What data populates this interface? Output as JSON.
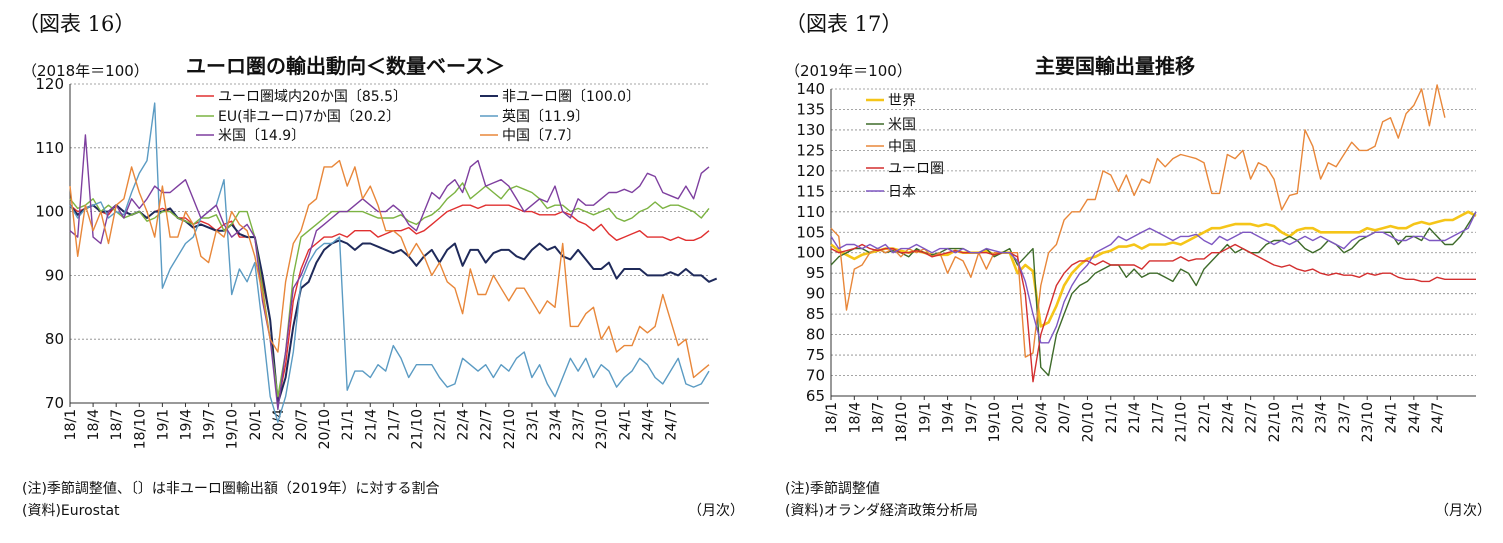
{
  "charts": [
    {
      "fig_label": "（図表 16）",
      "unit": "（2018年＝100）",
      "title": "ユーロ圏の輸出動向＜数量ベース＞",
      "note1": "(注)季節調整値、〔〕は非ユーロ圏輸出額（2019年）に対する割合",
      "note2": "(資料)Eurostat",
      "period": "（月次）"
    },
    {
      "fig_label": "（図表 17）",
      "unit": "（2019年＝100）",
      "title": "主要国輸出量推移",
      "note1": "(注)季節調整値",
      "note2": "(資料)オランダ経済政策分析局",
      "period": "（月次）"
    }
  ],
  "chart_data": [
    {
      "type": "line",
      "title": "ユーロ圏の輸出動向＜数量ベース＞",
      "ylim": [
        70,
        120
      ],
      "yticks": [
        70,
        80,
        90,
        100,
        110,
        120
      ],
      "x_tick_labels": [
        "18/1",
        "18/4",
        "18/7",
        "18/10",
        "19/1",
        "19/4",
        "19/7",
        "19/10",
        "20/1",
        "20/4",
        "20/7",
        "20/10",
        "21/1",
        "21/4",
        "21/7",
        "21/10",
        "22/1",
        "22/4",
        "22/7",
        "22/10",
        "23/1",
        "23/4",
        "23/7",
        "23/10",
        "24/1",
        "24/4",
        "24/7"
      ],
      "grid": true,
      "legend": "top",
      "series": [
        {
          "name": "ユーロ圏域内20か国〔85.5〕",
          "color": "#e03030",
          "width": 1.4,
          "values": [
            101,
            100,
            100.5,
            101,
            100,
            99.5,
            101,
            100,
            99.5,
            100,
            99,
            100,
            100.5,
            100,
            99,
            99,
            98,
            98.5,
            98,
            97,
            98,
            98.5,
            96,
            96,
            96,
            89,
            83,
            70,
            76,
            86,
            91,
            94,
            95,
            96,
            96,
            96.5,
            96,
            97,
            97,
            97,
            96,
            96.5,
            97,
            97,
            97.5,
            96.5,
            97,
            98,
            99,
            100,
            100.5,
            101,
            101,
            100.5,
            101,
            101,
            101,
            101,
            100.5,
            100,
            100,
            99.5,
            99.5,
            99.5,
            100,
            99.5,
            98.5,
            98,
            97,
            98,
            96.5,
            95.5,
            96,
            96.5,
            97,
            96,
            96,
            96,
            95.5,
            96,
            95.5,
            95.5,
            96,
            97
          ]
        },
        {
          "name": "非ユーロ圏〔100.0〕",
          "color": "#1f2a5a",
          "width": 2.0,
          "values": [
            101,
            99.5,
            100.5,
            101,
            100,
            100,
            101,
            100,
            99.5,
            100,
            99,
            100,
            100,
            100.5,
            99,
            98.5,
            97.5,
            98,
            97.5,
            97,
            97,
            98,
            96.5,
            96,
            96,
            90,
            83,
            70,
            74,
            82,
            88,
            89,
            92,
            94,
            95,
            95.5,
            95,
            94,
            95,
            95,
            94.5,
            94,
            93.5,
            94,
            93,
            91.5,
            93,
            94,
            92,
            94,
            95,
            91.5,
            94,
            94,
            92,
            93.5,
            94,
            94,
            93,
            92.5,
            94,
            95,
            94,
            94.5,
            93,
            92.5,
            94,
            92.5,
            91,
            91,
            92,
            89.5,
            91,
            91,
            91,
            90,
            90,
            90,
            90.5,
            90,
            91,
            90,
            90,
            89,
            89.5
          ]
        },
        {
          "name": "EU(非ユーロ)7か国〔20.2〕",
          "color": "#7cb342",
          "width": 1.4,
          "values": [
            102,
            100.5,
            101,
            102,
            100,
            101,
            100,
            99,
            99.5,
            100,
            98.5,
            99,
            100,
            100,
            99,
            98.5,
            98,
            99,
            99,
            99.5,
            97,
            98,
            100,
            100,
            96,
            88,
            80,
            71,
            78,
            90,
            96,
            97,
            98,
            99,
            100,
            100,
            100,
            100,
            100,
            99.5,
            99,
            99,
            99,
            99.5,
            98.5,
            98,
            99,
            99.5,
            100.5,
            102,
            103,
            104.5,
            102,
            103,
            104,
            103,
            102,
            103.5,
            104,
            103.5,
            103,
            102,
            100.5,
            101,
            101,
            100,
            100.5,
            100,
            99.5,
            100,
            100.5,
            99,
            98.5,
            99,
            100,
            100.5,
            101.5,
            100.5,
            101,
            101,
            100.5,
            100,
            99,
            100.5
          ]
        },
        {
          "name": "英国〔11.9〕",
          "color": "#5b9bc3",
          "width": 1.4,
          "values": [
            101,
            99,
            100.5,
            101,
            101.5,
            99,
            100,
            99.5,
            103,
            106,
            108,
            117,
            88,
            91,
            93,
            95,
            96,
            99,
            100,
            101,
            105,
            87,
            91,
            89,
            92,
            82,
            71,
            62,
            71,
            78,
            89,
            92,
            94,
            95,
            95,
            96,
            72,
            75,
            75,
            74,
            76,
            75,
            79,
            77,
            74,
            76,
            76,
            76,
            74,
            72.5,
            73,
            77,
            76,
            75,
            76,
            74,
            76,
            75,
            77,
            78,
            74,
            76,
            73,
            71,
            74,
            77,
            75,
            77,
            74,
            76,
            75,
            72.5,
            74,
            75,
            77,
            76,
            74,
            73,
            75,
            77,
            73,
            72.5,
            73,
            75
          ]
        },
        {
          "name": "米国〔14.9〕",
          "color": "#7e3f9f",
          "width": 1.4,
          "values": [
            97,
            96,
            112,
            96,
            95,
            100,
            101,
            99,
            102,
            100.5,
            102,
            104,
            103,
            103,
            104,
            105,
            102,
            99,
            100,
            101,
            98,
            96,
            97,
            98,
            96,
            86,
            80,
            69,
            78,
            88,
            90,
            93,
            97,
            98,
            99,
            100,
            100,
            101,
            102,
            101,
            100,
            100,
            101,
            100,
            98,
            97,
            100,
            103,
            102,
            104,
            105,
            103,
            107,
            108,
            104,
            104.5,
            105,
            104,
            102,
            100,
            101,
            102,
            101.5,
            104,
            100,
            99,
            102,
            101,
            101,
            102,
            103,
            103,
            103.5,
            103,
            104,
            106,
            105.5,
            103,
            102.5,
            102,
            104,
            102,
            106,
            107
          ]
        },
        {
          "name": "中国〔7.7〕",
          "color": "#e8873a",
          "width": 1.4,
          "values": [
            104,
            93,
            101,
            97,
            100,
            95,
            101,
            102,
            107,
            103,
            100,
            96,
            104,
            96,
            96,
            100,
            98,
            93,
            92,
            97,
            96,
            100,
            98,
            97,
            93,
            87,
            80,
            78,
            89,
            95,
            97,
            101,
            102,
            107,
            107,
            108,
            104,
            107,
            102,
            104,
            101,
            97,
            97,
            96,
            93,
            95,
            93,
            90,
            92,
            89,
            88,
            84,
            91,
            87,
            87,
            90,
            88,
            86,
            88,
            88,
            86,
            84,
            86,
            85,
            95,
            82,
            82,
            84,
            85,
            80,
            82,
            78,
            79,
            79,
            82,
            81,
            82,
            87,
            83,
            79,
            80,
            74,
            75,
            76
          ]
        }
      ]
    },
    {
      "type": "line",
      "title": "主要国輸出量推移",
      "ylim": [
        65,
        140
      ],
      "yticks": [
        65,
        70,
        75,
        80,
        85,
        90,
        95,
        100,
        105,
        110,
        115,
        120,
        125,
        130,
        135,
        140
      ],
      "x_tick_labels": [
        "18/1",
        "18/4",
        "18/7",
        "18/10",
        "19/1",
        "19/4",
        "19/7",
        "19/10",
        "20/1",
        "20/4",
        "20/7",
        "20/10",
        "21/1",
        "21/4",
        "21/7",
        "21/10",
        "22/1",
        "22/4",
        "22/7",
        "22/10",
        "23/1",
        "23/4",
        "23/7",
        "23/10",
        "24/1",
        "24/4",
        "24/7"
      ],
      "grid": true,
      "legend": "top-left",
      "series": [
        {
          "name": "世界",
          "color": "#f5c518",
          "width": 2.6,
          "values": [
            102,
            100.5,
            99.5,
            98.5,
            99.5,
            100,
            100.5,
            101,
            101,
            100.5,
            100,
            100.5,
            100,
            99.5,
            99.5,
            99.5,
            100.5,
            100,
            100,
            100,
            100.5,
            99.5,
            100,
            100,
            95,
            97,
            95.5,
            82,
            83,
            87,
            92,
            95,
            97,
            98.5,
            99,
            100,
            100.5,
            101.5,
            101.5,
            102,
            101,
            102,
            102,
            102,
            102.5,
            102,
            103,
            104,
            105,
            106,
            106,
            106.5,
            107,
            107,
            107,
            106.5,
            107,
            106.5,
            105,
            104,
            105.5,
            106,
            106,
            105,
            105,
            105,
            105,
            105,
            105,
            106,
            105.5,
            106,
            106.5,
            106,
            106,
            107,
            107.5,
            107,
            107.5,
            108,
            108,
            109,
            110,
            109
          ]
        },
        {
          "name": "米国",
          "color": "#3e6b2a",
          "width": 1.4,
          "values": [
            97,
            99,
            100,
            101,
            101,
            100,
            101,
            100,
            100.5,
            100,
            99,
            101,
            100,
            99.5,
            100,
            101,
            101,
            101,
            100,
            100,
            101,
            99,
            100,
            101,
            97,
            99,
            101,
            72,
            70,
            80,
            85,
            90,
            92,
            93,
            95,
            96,
            97,
            97,
            94,
            96,
            94,
            95,
            95,
            94,
            93,
            96,
            95,
            92,
            96,
            98,
            100,
            102,
            100,
            101,
            100,
            100,
            102,
            103,
            103,
            104,
            103,
            101,
            100,
            101,
            103,
            102,
            100,
            101,
            103,
            104,
            105,
            105,
            105,
            102,
            104,
            104,
            103,
            106,
            104,
            102,
            102,
            104,
            107,
            110
          ]
        },
        {
          "name": "中国",
          "color": "#e8873a",
          "width": 1.4,
          "values": [
            106,
            104,
            86,
            96,
            97,
            100,
            101,
            100,
            101,
            99,
            101,
            100,
            101,
            99,
            100,
            95,
            99,
            98,
            94,
            100,
            96,
            100,
            100,
            100,
            100,
            74.5,
            75.5,
            92,
            100,
            102,
            108,
            110,
            110,
            113,
            113,
            120,
            119,
            115,
            119,
            114,
            118,
            117,
            123,
            121,
            123,
            124,
            123.5,
            123,
            122,
            114.5,
            114.5,
            124,
            123,
            125,
            118,
            122,
            121,
            118,
            110.5,
            114,
            114.5,
            130,
            126,
            118,
            122,
            121,
            124,
            127,
            125,
            125,
            126,
            132,
            133,
            128,
            134,
            136,
            140,
            131,
            141,
            133
          ]
        },
        {
          "name": "ユーロ圏",
          "color": "#d32f2f",
          "width": 1.4,
          "values": [
            101,
            100,
            100.5,
            101,
            102,
            101,
            100.5,
            101,
            101,
            100,
            100,
            100.5,
            100,
            99,
            99.5,
            100,
            100.5,
            100,
            100,
            100,
            100,
            99.5,
            100,
            100,
            99,
            90,
            68.5,
            80,
            86,
            92,
            95,
            97,
            98,
            98,
            97,
            98,
            97,
            97,
            97,
            97,
            96,
            98,
            98,
            98,
            98,
            99,
            98,
            98.5,
            98.5,
            100,
            100,
            101,
            102,
            101,
            100,
            99,
            98,
            97,
            96.5,
            97,
            96,
            95.5,
            96,
            95,
            94.5,
            95,
            94.5,
            94.5,
            94,
            95,
            94.5,
            95,
            95,
            94,
            93.5,
            93.5,
            93,
            93,
            94,
            93.5,
            93.5,
            93.5,
            93.5,
            93.5
          ]
        },
        {
          "name": "日本",
          "color": "#7e57c2",
          "width": 1.4,
          "values": [
            104,
            101,
            102,
            102,
            101,
            102,
            101,
            102,
            100,
            101,
            101,
            102,
            101,
            100,
            101,
            101,
            100,
            101,
            100,
            100,
            101,
            100.5,
            100,
            100,
            98,
            93,
            85,
            78,
            78,
            82,
            88,
            92,
            95,
            97,
            100,
            101,
            102,
            104,
            103,
            104,
            105,
            106,
            105,
            104,
            103,
            104,
            104,
            104.5,
            103,
            102,
            104,
            103,
            104,
            105,
            105,
            104,
            103,
            102,
            103,
            102,
            103,
            104,
            103,
            104,
            103,
            102,
            101,
            103,
            104,
            104,
            105,
            105,
            104,
            103,
            103,
            104,
            104,
            103,
            103,
            103,
            104,
            105,
            106,
            110
          ]
        }
      ]
    }
  ]
}
